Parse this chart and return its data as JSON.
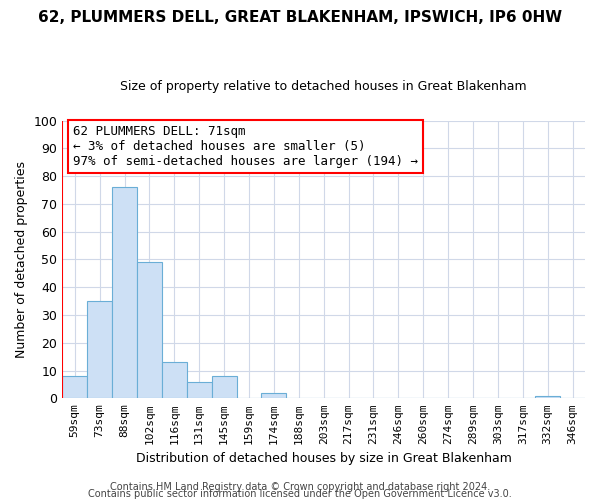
{
  "title": "62, PLUMMERS DELL, GREAT BLAKENHAM, IPSWICH, IP6 0HW",
  "subtitle": "Size of property relative to detached houses in Great Blakenham",
  "xlabel": "Distribution of detached houses by size in Great Blakenham",
  "ylabel": "Number of detached properties",
  "bar_labels": [
    "59sqm",
    "73sqm",
    "88sqm",
    "102sqm",
    "116sqm",
    "131sqm",
    "145sqm",
    "159sqm",
    "174sqm",
    "188sqm",
    "203sqm",
    "217sqm",
    "231sqm",
    "246sqm",
    "260sqm",
    "274sqm",
    "289sqm",
    "303sqm",
    "317sqm",
    "332sqm",
    "346sqm"
  ],
  "bar_values": [
    8,
    35,
    76,
    49,
    13,
    6,
    8,
    0,
    2,
    0,
    0,
    0,
    0,
    0,
    0,
    0,
    0,
    0,
    0,
    1,
    0
  ],
  "bar_color": "#cde0f5",
  "bar_edge_color": "#6aaed6",
  "ylim": [
    0,
    100
  ],
  "yticks": [
    0,
    10,
    20,
    30,
    40,
    50,
    60,
    70,
    80,
    90,
    100
  ],
  "annotation_line1": "62 PLUMMERS DELL: 71sqm",
  "annotation_line2": "← 3% of detached houses are smaller (5)",
  "annotation_line3": "97% of semi-detached houses are larger (194) →",
  "red_line_bin_index": 1,
  "footer_line1": "Contains HM Land Registry data © Crown copyright and database right 2024.",
  "footer_line2": "Contains public sector information licensed under the Open Government Licence v3.0.",
  "grid_color": "#d0d8e8",
  "background_color": "#ffffff",
  "title_fontsize": 11,
  "subtitle_fontsize": 9,
  "ylabel_fontsize": 9,
  "xlabel_fontsize": 9,
  "ytick_fontsize": 9,
  "xtick_fontsize": 8,
  "annotation_fontsize": 9,
  "footer_fontsize": 7
}
